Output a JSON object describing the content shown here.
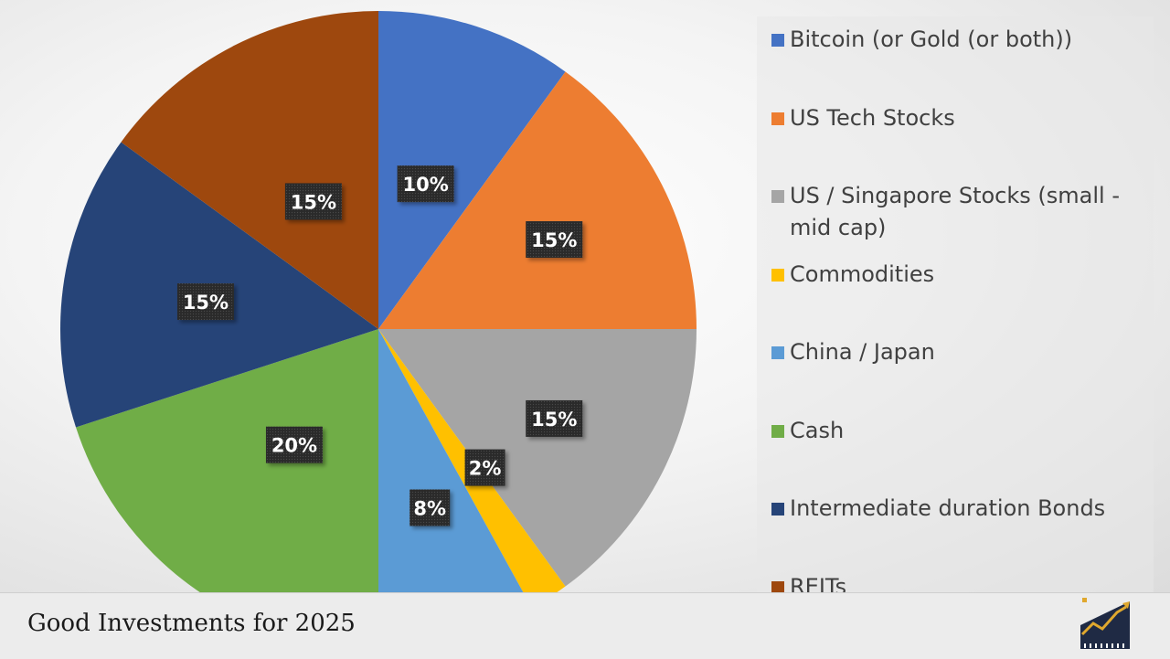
{
  "chart_data": {
    "type": "pie",
    "title": "",
    "slices": [
      {
        "label": "Bitcoin (or Gold (or both))",
        "value": 10,
        "data_label": "10%",
        "color": "#4472C4"
      },
      {
        "label": "US Tech Stocks",
        "value": 15,
        "data_label": "15%",
        "color": "#ED7D31"
      },
      {
        "label": "US / Singapore Stocks (small - mid cap)",
        "value": 15,
        "data_label": "15%",
        "color": "#A5A5A5"
      },
      {
        "label": "Commodities",
        "value": 2,
        "data_label": "2%",
        "color": "#FFC000"
      },
      {
        "label": "China / Japan",
        "value": 8,
        "data_label": "8%",
        "color": "#5B9BD5"
      },
      {
        "label": "Cash",
        "value": 20,
        "data_label": "20%",
        "color": "#70AD47"
      },
      {
        "label": "Intermediate duration Bonds",
        "value": 15,
        "data_label": "15%",
        "color": "#264478"
      },
      {
        "label": "REITs",
        "value": 15,
        "data_label": "15%",
        "color": "#9E480E"
      }
    ],
    "legend_position": "right"
  },
  "footer": {
    "title": "Good Investments for 2025",
    "logo_icon": "rising-chart-icon"
  }
}
